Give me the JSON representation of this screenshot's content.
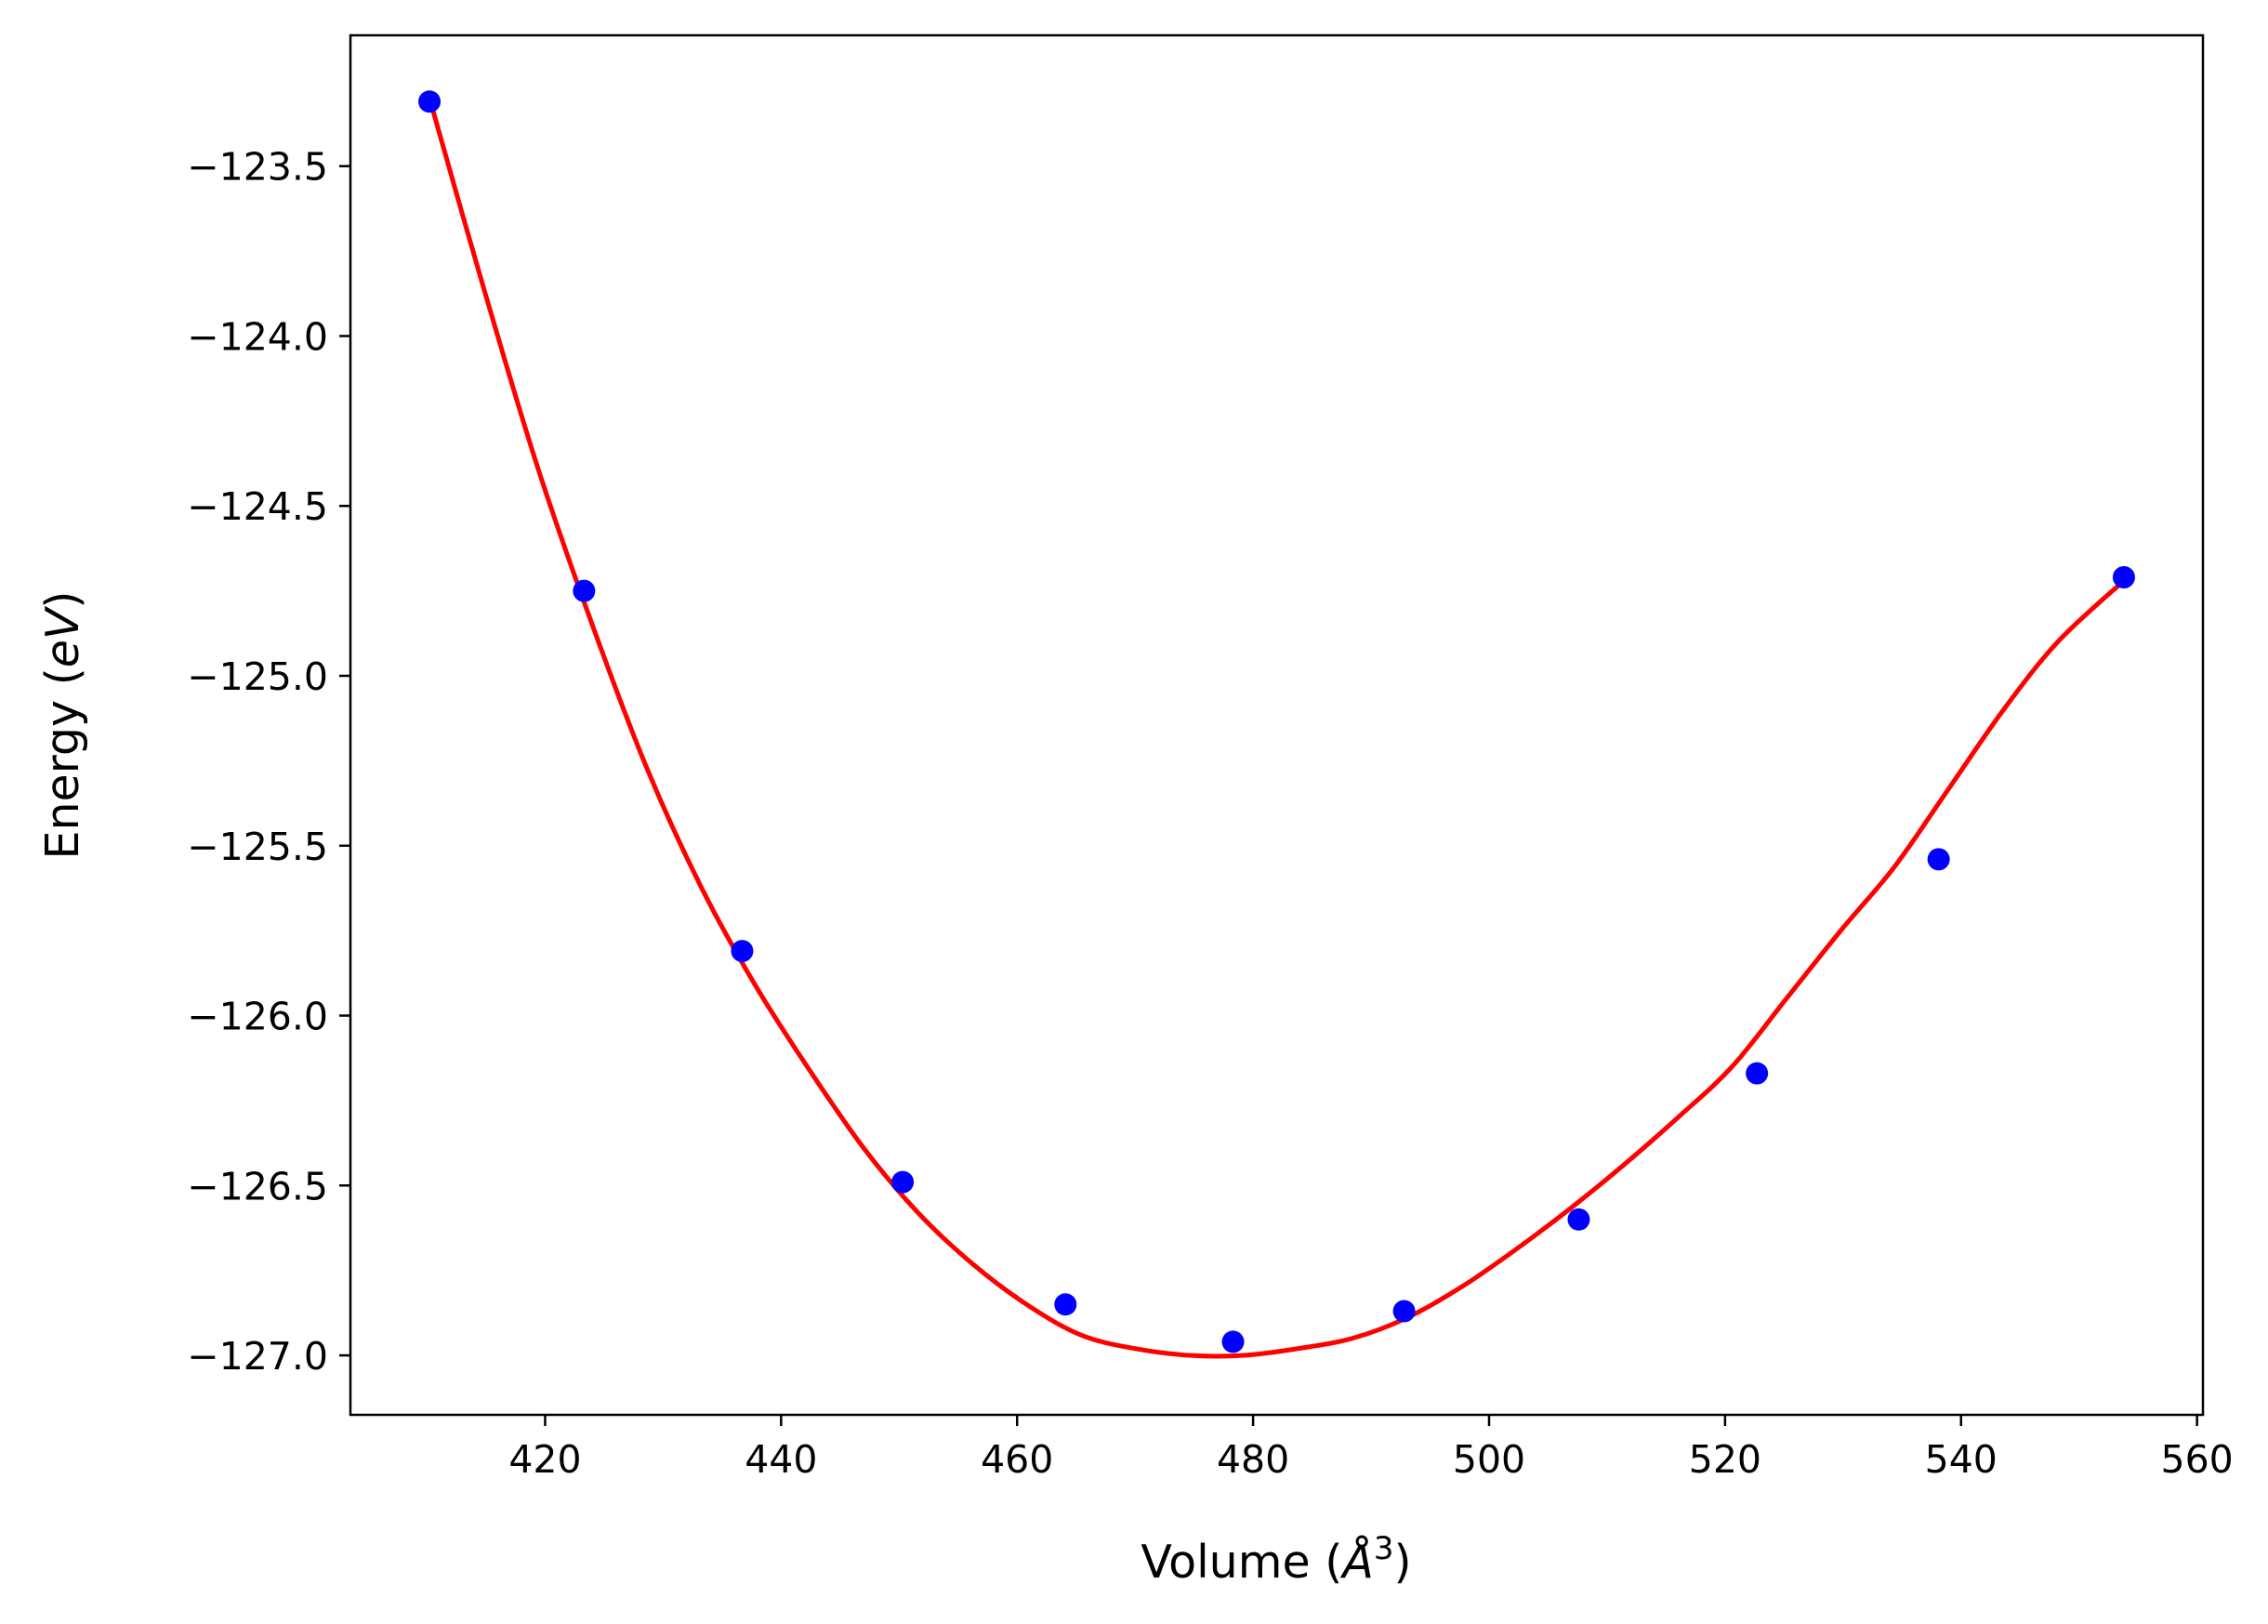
{
  "chart_data": {
    "type": "scatter",
    "title": "",
    "xlabel": {
      "before": "Volume (",
      "symbol": "Å",
      "exponent": "3",
      "after": ")"
    },
    "ylabel": {
      "before": "Energy (",
      "unit": "eV",
      "after": ")"
    },
    "xlim": [
      403.5,
      560.5
    ],
    "ylim": [
      -127.175,
      -123.115
    ],
    "xticks": [
      420,
      440,
      460,
      480,
      500,
      520,
      540,
      560
    ],
    "yticks": [
      -123.5,
      -124.0,
      -124.5,
      -125.0,
      -125.5,
      -126.0,
      -126.5,
      -127.0
    ],
    "xtick_labels": [
      "420",
      "440",
      "460",
      "480",
      "500",
      "520",
      "540",
      "560"
    ],
    "ytick_labels": [
      "−123.5",
      "−124.0",
      "−124.5",
      "−125.0",
      "−125.5",
      "−126.0",
      "−126.5",
      "−127.0"
    ],
    "grid": false,
    "legend": null,
    "series": [
      {
        "type": "scatter",
        "color": "#0000ff",
        "x": [
          410.2,
          423.3,
          436.7,
          450.3,
          464.1,
          478.3,
          492.8,
          507.6,
          522.7,
          538.1,
          553.8
        ],
        "y": [
          -123.31,
          -124.75,
          -125.81,
          -126.49,
          -126.85,
          -126.96,
          -126.87,
          -126.6,
          -126.17,
          -125.54,
          -124.71
        ]
      },
      {
        "type": "line",
        "color": "#ff0000",
        "x": [
          410.2,
          414.8,
          419.4,
          424.0,
          428.6,
          433.2,
          437.8,
          442.4,
          447.0,
          451.6,
          456.2,
          460.8,
          465.4,
          470.0,
          474.6,
          479.2,
          483.8,
          488.4,
          493.0,
          497.6,
          502.2,
          506.8,
          511.4,
          516.0,
          520.6,
          525.2,
          529.8,
          534.4,
          539.0,
          543.6,
          548.2,
          553.8
        ],
        "y": [
          -123.3,
          -123.86,
          -124.39,
          -124.85,
          -125.27,
          -125.62,
          -125.91,
          -126.16,
          -126.39,
          -126.58,
          -126.73,
          -126.85,
          -126.94,
          -126.98,
          -127.0,
          -127.0,
          -126.98,
          -126.95,
          -126.89,
          -126.8,
          -126.69,
          -126.57,
          -126.44,
          -126.3,
          -126.15,
          -125.95,
          -125.75,
          -125.56,
          -125.33,
          -125.1,
          -124.9,
          -124.72
        ]
      }
    ]
  }
}
